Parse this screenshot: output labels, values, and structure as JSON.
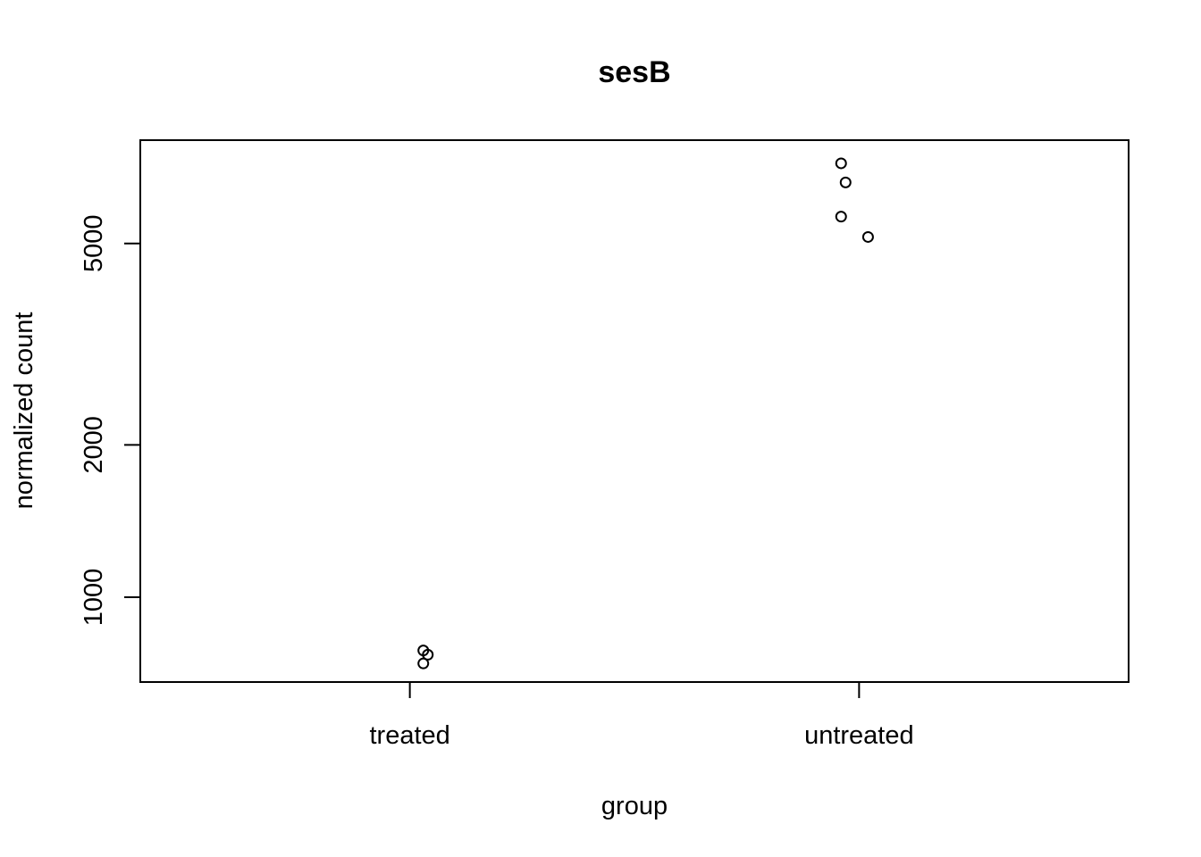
{
  "chart_data": {
    "type": "scatter",
    "title": "sesB",
    "xlabel": "group",
    "ylabel": "normalized count",
    "categories": [
      "treated",
      "untreated"
    ],
    "y_scale": "log",
    "ylim": [
      680,
      8000
    ],
    "y_ticks": [
      1000,
      2000,
      5000
    ],
    "y_tick_labels": [
      "1000",
      "2000",
      "5000"
    ],
    "grid": false,
    "legend": "none",
    "points": [
      {
        "group": "treated",
        "jitter": 0.03,
        "y": 785
      },
      {
        "group": "treated",
        "jitter": 0.04,
        "y": 770
      },
      {
        "group": "treated",
        "jitter": 0.03,
        "y": 740
      },
      {
        "group": "untreated",
        "jitter": -0.04,
        "y": 7200
      },
      {
        "group": "untreated",
        "jitter": -0.03,
        "y": 6600
      },
      {
        "group": "untreated",
        "jitter": -0.04,
        "y": 5650
      },
      {
        "group": "untreated",
        "jitter": 0.02,
        "y": 5150
      }
    ]
  }
}
